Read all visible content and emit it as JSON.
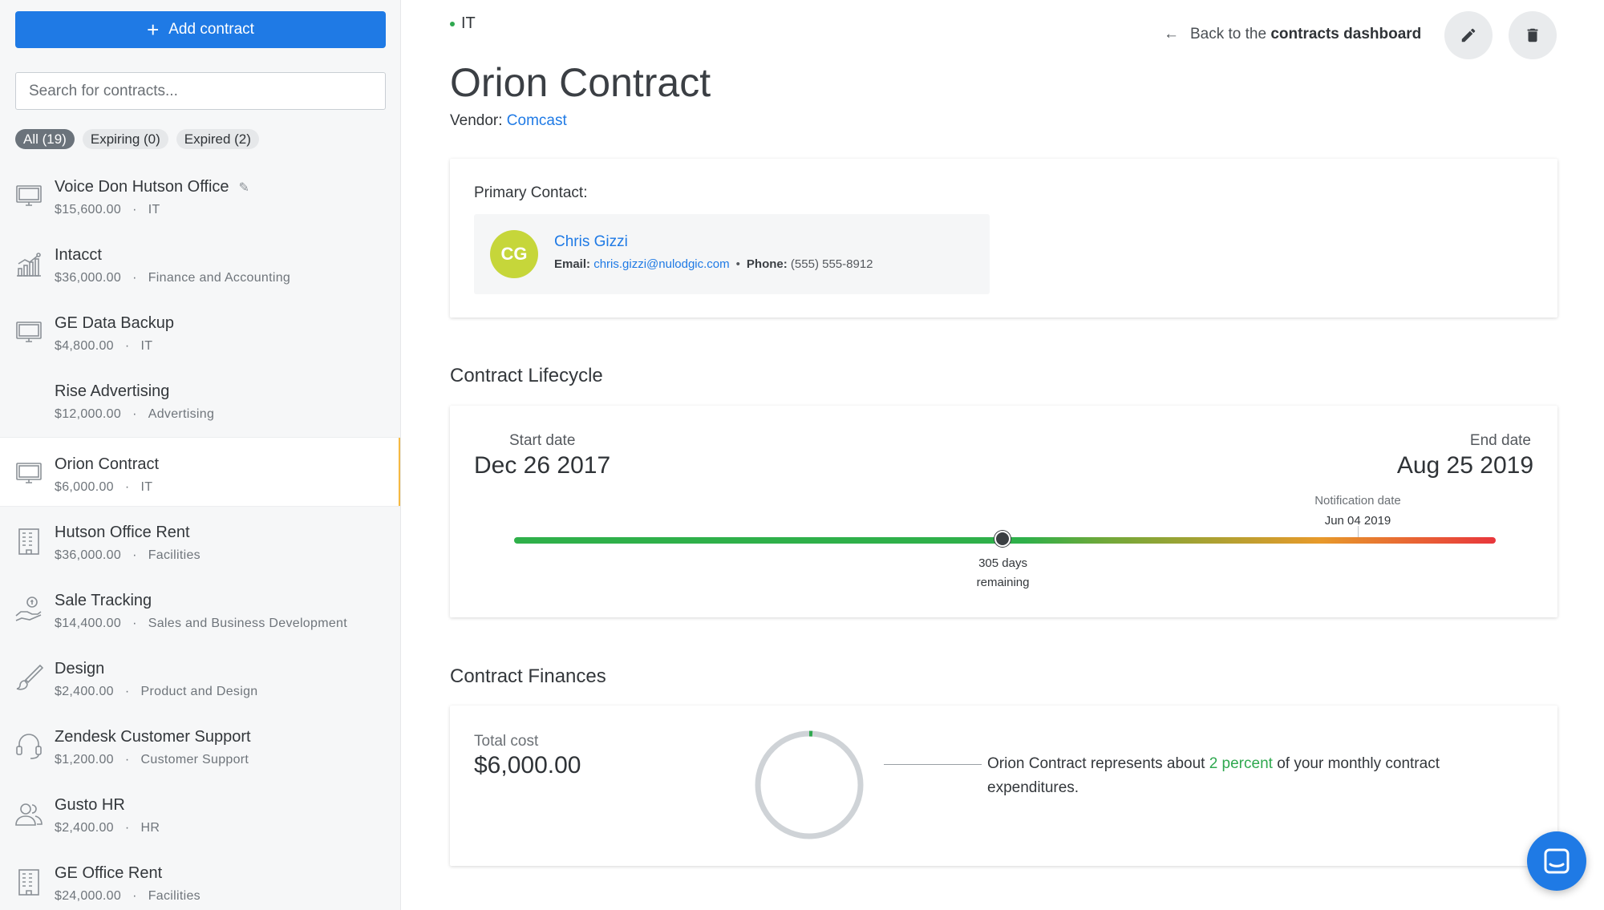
{
  "sidebar": {
    "add_label": "Add contract",
    "search_placeholder": "Search for contracts...",
    "filters": [
      {
        "label": "All (19)",
        "active": true
      },
      {
        "label": "Expiring (0)",
        "active": false
      },
      {
        "label": "Expired (2)",
        "active": false
      }
    ],
    "items": [
      {
        "title": "Voice Don Hutson Office",
        "amount": "$15,600.00",
        "category": "IT",
        "icon": "monitor-icon",
        "attachment": true
      },
      {
        "title": "Intacct",
        "amount": "$36,000.00",
        "category": "Finance and Accounting",
        "icon": "chart-icon"
      },
      {
        "title": "GE Data Backup",
        "amount": "$4,800.00",
        "category": "IT",
        "icon": "monitor-icon"
      },
      {
        "title": "Rise Advertising",
        "amount": "$12,000.00",
        "category": "Advertising",
        "icon": ""
      },
      {
        "title": "Orion Contract",
        "amount": "$6,000.00",
        "category": "IT",
        "icon": "monitor-icon",
        "selected": true
      },
      {
        "title": "Hutson Office Rent",
        "amount": "$36,000.00",
        "category": "Facilities",
        "icon": "building-icon"
      },
      {
        "title": "Sale Tracking",
        "amount": "$14,400.00",
        "category": "Sales and Business Development",
        "icon": "money-hand-icon"
      },
      {
        "title": "Design",
        "amount": "$2,400.00",
        "category": "Product and Design",
        "icon": "brush-icon"
      },
      {
        "title": "Zendesk Customer Support",
        "amount": "$1,200.00",
        "category": "Customer Support",
        "icon": "headset-icon"
      },
      {
        "title": "Gusto HR",
        "amount": "$2,400.00",
        "category": "HR",
        "icon": "people-icon"
      },
      {
        "title": "GE Office Rent",
        "amount": "$24,000.00",
        "category": "Facilities",
        "icon": "building-icon"
      }
    ]
  },
  "header": {
    "department": "IT",
    "back_prefix": "Back to the",
    "back_bold": "contracts dashboard"
  },
  "contract": {
    "title": "Orion Contract",
    "vendor_label": "Vendor:",
    "vendor": "Comcast"
  },
  "contact": {
    "label": "Primary Contact:",
    "initials": "CG",
    "name": "Chris Gizzi",
    "email_label": "Email:",
    "email": "chris.gizzi@nulodgic.com",
    "phone_label": "Phone:",
    "phone": "(555) 555-8912",
    "avatar_color": "#c6d63a"
  },
  "lifecycle": {
    "heading": "Contract Lifecycle",
    "start_label": "Start date",
    "start_value": "Dec 26 2017",
    "end_label": "End date",
    "end_value": "Aug 25 2019",
    "notification_label": "Notification date",
    "notification_value": "Jun 04 2019",
    "remaining_line1": "305 days",
    "remaining_line2": "remaining",
    "progress_fraction": 0.498
  },
  "finances": {
    "heading": "Contract Finances",
    "total_label": "Total cost",
    "total_value": "$6,000.00",
    "text_before": "Orion Contract represents about",
    "percent_text": "2 percent",
    "text_after": "of your monthly contract expenditures.",
    "percent": 2
  },
  "colors": {
    "accent": "#1f7ae5",
    "selected_border": "#f5b942",
    "positive": "#2fa84f"
  }
}
